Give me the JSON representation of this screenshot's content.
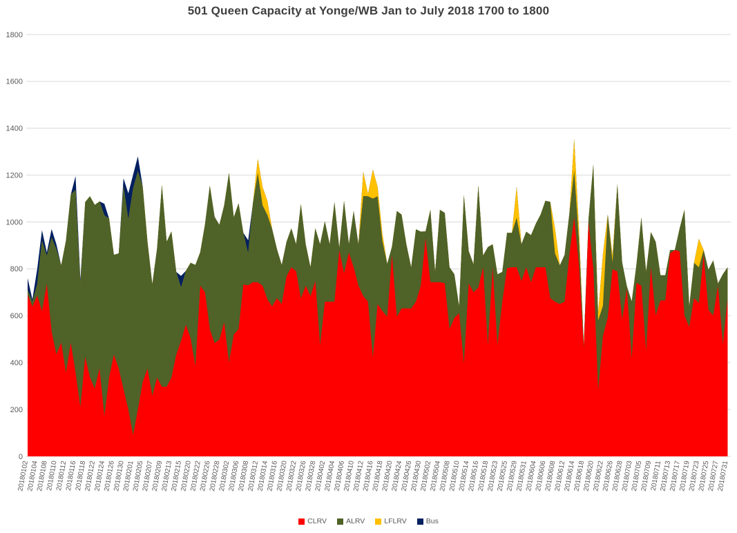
{
  "title": "501 Queen Capacity at Yonge/WB Jan to July 2018 1700 to 1800",
  "colors": {
    "clrv": "#FF0000",
    "alrv": "#4F6228",
    "lflrv": "#FFC000",
    "bus": "#002060",
    "gridline": "#D9D9D9",
    "axis_text": "#595959",
    "title_text": "#3F3F3F",
    "background": "#FFFFFF"
  },
  "legend": [
    {
      "label": "CLRV",
      "color": "#FF0000"
    },
    {
      "label": "ALRV",
      "color": "#4F6228"
    },
    {
      "label": "LFLRV",
      "color": "#FFC000"
    },
    {
      "label": "Bus",
      "color": "#002060"
    }
  ],
  "axes": {
    "y_ticks": [
      0,
      200,
      400,
      600,
      800,
      1000,
      1200,
      1400,
      1600,
      1800
    ],
    "ylim": [
      0,
      1800
    ],
    "x_label_every": 2
  },
  "chart_data": {
    "type": "area",
    "stacked": true,
    "title": "501 Queen Capacity at Yonge/WB Jan to July 2018 1700 to 1800",
    "xlabel": "",
    "ylabel": "",
    "ylim": [
      0,
      1800
    ],
    "grid": true,
    "legend_position": "bottom",
    "x": [
      "20180102",
      "20180103",
      "20180104",
      "20180105",
      "20180108",
      "20180109",
      "20180110",
      "20180111",
      "20180112",
      "20180115",
      "20180116",
      "20180117",
      "20180118",
      "20180119",
      "20180122",
      "20180123",
      "20180124",
      "20180125",
      "20180126",
      "20180129",
      "20180130",
      "20180131",
      "20180201",
      "20180202",
      "20180205",
      "20180206",
      "20180207",
      "20180208",
      "20180209",
      "20180212",
      "20180213",
      "20180214",
      "20180215",
      "20180216",
      "20180220",
      "20180221",
      "20180222",
      "20180223",
      "20180226",
      "20180227",
      "20180228",
      "20180301",
      "20180302",
      "20180305",
      "20180306",
      "20180307",
      "20180308",
      "20180309",
      "20180312",
      "20180313",
      "20180314",
      "20180315",
      "20180316",
      "20180319",
      "20180320",
      "20180321",
      "20180322",
      "20180323",
      "20180326",
      "20180327",
      "20180328",
      "20180329",
      "20180402",
      "20180403",
      "20180404",
      "20180405",
      "20180406",
      "20180409",
      "20180410",
      "20180411",
      "20180412",
      "20180413",
      "20180416",
      "20180417",
      "20180418",
      "20180419",
      "20180420",
      "20180423",
      "20180424",
      "20180425",
      "20180426",
      "20180427",
      "20180430",
      "20180501",
      "20180502",
      "20180503",
      "20180504",
      "20180507",
      "20180508",
      "20180509",
      "20180510",
      "20180511",
      "20180514",
      "20180515",
      "20180516",
      "20180517",
      "20180518",
      "20180522",
      "20180523",
      "20180524",
      "20180525",
      "20180528",
      "20180529",
      "20180530",
      "20180531",
      "20180601",
      "20180604",
      "20180605",
      "20180606",
      "20180607",
      "20180608",
      "20180611",
      "20180612",
      "20180613",
      "20180614",
      "20180615",
      "20180618",
      "20180619",
      "20180620",
      "20180621",
      "20180622",
      "20180625",
      "20180626",
      "20180627",
      "20180628",
      "20180629",
      "20180703",
      "20180704",
      "20180705",
      "20180706",
      "20180709",
      "20180710",
      "20180711",
      "20180712",
      "20180713",
      "20180716",
      "20180717",
      "20180718",
      "20180719",
      "20180720",
      "20180723",
      "20180724",
      "20180725",
      "20180726",
      "20180727",
      "20180730",
      "20180731"
    ],
    "series": [
      {
        "name": "CLRV",
        "color": "#FF0000",
        "values": [
          690,
          640,
          685,
          620,
          735,
          533,
          435,
          485,
          357,
          484,
          357,
          209,
          425,
          337,
          288,
          376,
          170,
          337,
          434,
          375,
          287,
          200,
          90,
          200,
          317,
          375,
          258,
          336,
          297,
          297,
          336,
          434,
          493,
          562,
          503,
          385,
          728,
          700,
          542,
          483,
          498,
          572,
          400,
          520,
          542,
          733,
          730,
          743,
          743,
          728,
          670,
          640,
          675,
          650,
          768,
          807,
          790,
          674,
          728,
          684,
          748,
          473,
          660,
          660,
          660,
          880,
          780,
          870,
          807,
          728,
          684,
          660,
          420,
          650,
          620,
          596,
          860,
          596,
          631,
          631,
          631,
          660,
          728,
          930,
          743,
          743,
          743,
          739,
          543,
          591,
          611,
          395,
          739,
          700,
          720,
          807,
          473,
          807,
          473,
          660,
          803,
          807,
          807,
          748,
          807,
          742,
          807,
          807,
          807,
          675,
          660,
          650,
          660,
          860,
          1020,
          817,
          460,
          1000,
          798,
          280,
          513,
          592,
          798,
          789,
          583,
          715,
          415,
          740,
          728,
          450,
          807,
          601,
          665,
          665,
          866,
          880,
          875,
          601,
          552,
          675,
          655,
          860,
          625,
          601,
          728,
          478,
          670
        ]
      },
      {
        "name": "ALRV",
        "color": "#4F6228",
        "values": [
          20,
          20,
          50,
          300,
          120,
          400,
          450,
          330,
          564,
          633,
          780,
          525,
          660,
          773,
          785,
          712,
          859,
          677,
          426,
          491,
          866,
          810,
          1053,
          1016,
          835,
          541,
          476,
          551,
          860,
          619,
          624,
          353,
          227,
          230,
          323,
          432,
          143,
          290,
          613,
          539,
          490,
          500,
          809,
          500,
          538,
          221,
          135,
          338,
          467,
          344,
          360,
          330,
          210,
          167,
          147,
          166,
          115,
          402,
          177,
          123,
          225,
          432,
          343,
          245,
          425,
          10,
          310,
          35,
          240,
          177,
          427,
          450,
          680,
          460,
          300,
          225,
          35,
          451,
          401,
          274,
          176,
          309,
          231,
          30,
          309,
          44,
          309,
          300,
          264,
          186,
          29,
          720,
          137,
          120,
          435,
          50,
          420,
          98,
          304,
          127,
          151,
          147,
          211,
          157,
          152,
          202,
          186,
          225,
          284,
          411,
          206,
          165,
          200,
          175,
          200,
          106,
          15,
          15,
          447,
          300,
          130,
          440,
          30,
          373,
          245,
          10,
          246,
          80,
          290,
          337,
          150,
          314,
          108,
          108,
          14,
          0,
          98,
          451,
          88,
          151,
          152,
          20,
          172,
          235,
          10,
          299,
          137
        ]
      },
      {
        "name": "LFLRV",
        "color": "#FFC000",
        "values": [
          0,
          0,
          0,
          0,
          0,
          0,
          0,
          0,
          0,
          0,
          0,
          0,
          0,
          0,
          0,
          0,
          0,
          0,
          0,
          0,
          0,
          0,
          0,
          0,
          0,
          0,
          0,
          0,
          0,
          0,
          0,
          0,
          0,
          0,
          0,
          0,
          0,
          0,
          0,
          0,
          0,
          0,
          0,
          0,
          0,
          0,
          0,
          0,
          60,
          78,
          60,
          0,
          0,
          0,
          0,
          0,
          0,
          0,
          0,
          0,
          0,
          0,
          0,
          0,
          0,
          0,
          0,
          0,
          0,
          0,
          103,
          10,
          124,
          40,
          30,
          0,
          0,
          0,
          0,
          0,
          0,
          0,
          0,
          0,
          0,
          0,
          0,
          0,
          0,
          0,
          0,
          0,
          0,
          0,
          0,
          0,
          0,
          0,
          0,
          0,
          0,
          0,
          132,
          0,
          0,
          0,
          0,
          0,
          0,
          0,
          107,
          0,
          0,
          0,
          135,
          50,
          0,
          0,
          0,
          30,
          220,
          0,
          30,
          0,
          0,
          0,
          0,
          0,
          0,
          0,
          0,
          0,
          0,
          0,
          0,
          0,
          0,
          0,
          0,
          0,
          122,
          0,
          0,
          0,
          0,
          0,
          0
        ]
      },
      {
        "name": "Bus",
        "color": "#002060",
        "values": [
          50,
          10,
          65,
          45,
          15,
          37,
          20,
          0,
          0,
          0,
          59,
          20,
          0,
          0,
          0,
          0,
          49,
          0,
          0,
          0,
          34,
          112,
          59,
          64,
          0,
          0,
          0,
          0,
          0,
          0,
          0,
          0,
          50,
          0,
          0,
          0,
          0,
          0,
          0,
          0,
          0,
          0,
          0,
          0,
          0,
          0,
          57,
          0,
          0,
          0,
          0,
          0,
          0,
          0,
          0,
          0,
          0,
          0,
          0,
          0,
          0,
          0,
          0,
          0,
          0,
          0,
          0,
          0,
          0,
          0,
          0,
          0,
          0,
          0,
          0,
          0,
          0,
          0,
          0,
          0,
          0,
          0,
          0,
          0,
          0,
          0,
          0,
          0,
          0,
          0,
          0,
          0,
          0,
          0,
          0,
          0,
          0,
          0,
          0,
          0,
          0,
          0,
          0,
          0,
          0,
          0,
          0,
          0,
          0,
          0,
          0,
          0,
          0,
          0,
          0,
          0,
          0,
          0,
          0,
          0,
          0,
          0,
          0,
          0,
          0,
          0,
          0,
          0,
          0,
          0,
          0,
          0,
          0,
          0,
          0,
          0,
          0,
          0,
          0,
          0,
          0,
          0,
          0,
          0,
          0,
          0,
          0
        ]
      }
    ]
  }
}
